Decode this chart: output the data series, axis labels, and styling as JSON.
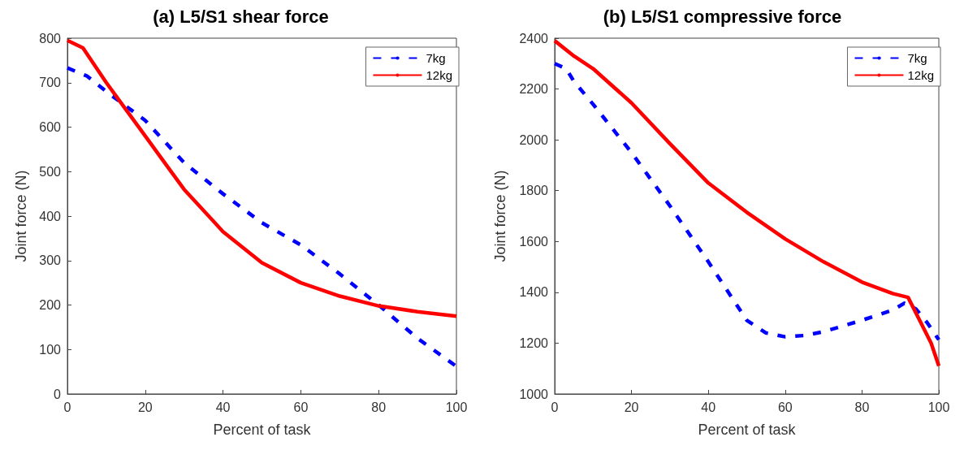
{
  "chart_data": [
    {
      "type": "line",
      "title": "(a) L5/S1 shear force",
      "xlabel": "Percent of task",
      "ylabel": "Joint force (N)",
      "xlim": [
        0,
        100
      ],
      "xticks": [
        0,
        20,
        40,
        60,
        80,
        100
      ],
      "ylim": [
        0,
        800
      ],
      "yticks": [
        0,
        100,
        200,
        300,
        400,
        500,
        600,
        700,
        800
      ],
      "grid": false,
      "legend": "top right",
      "marker": "none",
      "series": [
        {
          "name": "7kg",
          "color": "#0000ff",
          "line_style": "dashed",
          "x": [
            0,
            5,
            10,
            20,
            30,
            40,
            50,
            60,
            70,
            80,
            90,
            100
          ],
          "values": [
            733,
            715,
            680,
            615,
            520,
            450,
            385,
            335,
            270,
            200,
            125,
            62
          ]
        },
        {
          "name": "12kg",
          "color": "#ff0000",
          "line_style": "solid",
          "x": [
            0,
            4,
            10,
            15,
            20,
            25,
            30,
            40,
            50,
            60,
            70,
            80,
            90,
            100
          ],
          "values": [
            795,
            778,
            700,
            640,
            580,
            520,
            460,
            365,
            295,
            250,
            220,
            198,
            185,
            175
          ]
        }
      ]
    },
    {
      "type": "line",
      "title": "(b) L5/S1 compressive force",
      "xlabel": "Percent of task",
      "ylabel": "Joint force (N)",
      "xlim": [
        0,
        100
      ],
      "xticks": [
        0,
        20,
        40,
        60,
        80,
        100
      ],
      "ylim": [
        1000,
        2400
      ],
      "yticks": [
        1000,
        1200,
        1400,
        1600,
        1800,
        2000,
        2200,
        2400
      ],
      "grid": false,
      "legend": "top right",
      "marker": "none",
      "series": [
        {
          "name": "7kg",
          "color": "#0000ff",
          "line_style": "dashed",
          "x": [
            0,
            3,
            5,
            10,
            20,
            30,
            40,
            45,
            50,
            55,
            60,
            65,
            70,
            80,
            88,
            91,
            94,
            97,
            100
          ],
          "values": [
            2300,
            2280,
            2230,
            2140,
            1950,
            1740,
            1520,
            1405,
            1290,
            1240,
            1225,
            1230,
            1245,
            1290,
            1330,
            1357,
            1335,
            1280,
            1213
          ]
        },
        {
          "name": "12kg",
          "color": "#ff0000",
          "line_style": "solid",
          "x": [
            0,
            5,
            10,
            20,
            30,
            40,
            50,
            60,
            70,
            80,
            88,
            92,
            95,
            98,
            100
          ],
          "values": [
            2390,
            2330,
            2280,
            2145,
            1985,
            1830,
            1715,
            1610,
            1520,
            1440,
            1395,
            1380,
            1290,
            1200,
            1110
          ]
        }
      ]
    }
  ]
}
